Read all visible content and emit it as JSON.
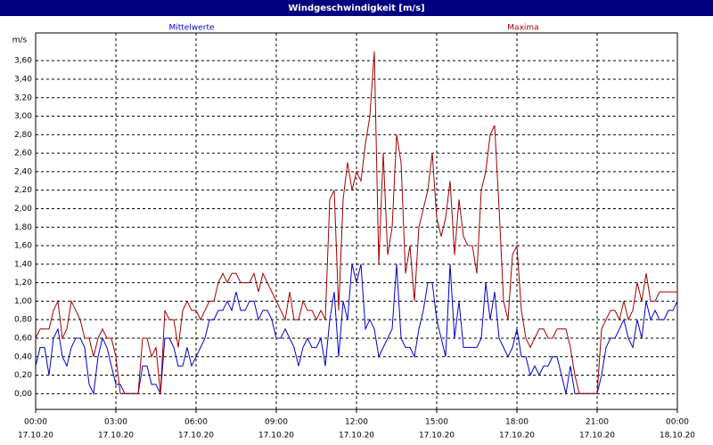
{
  "chart_data": {
    "type": "line",
    "title": "Windgeschwindigkeit [m/s]",
    "y_unit": "m/s",
    "x": [
      0,
      10,
      20,
      30,
      40,
      50,
      60,
      70,
      80,
      90,
      100,
      110,
      120,
      130,
      140,
      150,
      160,
      170,
      180,
      190,
      200,
      210,
      220,
      230,
      240,
      250,
      260,
      270,
      280,
      290,
      300,
      310,
      320,
      330,
      340,
      350,
      360,
      370,
      380,
      390,
      400,
      410,
      420,
      430,
      440,
      450,
      460,
      470,
      480,
      490,
      500,
      510,
      520,
      530,
      540,
      550,
      560,
      570,
      580,
      590,
      600,
      610,
      620,
      630,
      640,
      650,
      660,
      670,
      680,
      690,
      700,
      710,
      720,
      730,
      740,
      750,
      760,
      770,
      780,
      790,
      800,
      810,
      820,
      830,
      840,
      850,
      860,
      870,
      880,
      890,
      900,
      910,
      920,
      930,
      940,
      950,
      960,
      970,
      980,
      990,
      1000,
      1010,
      1020,
      1030,
      1040,
      1050,
      1060,
      1070,
      1080,
      1090,
      1100,
      1110,
      1120,
      1130,
      1140,
      1150,
      1160,
      1170,
      1180,
      1190,
      1200,
      1210,
      1220,
      1230,
      1240,
      1250,
      1260,
      1270,
      1280,
      1290,
      1300,
      1310,
      1320,
      1330,
      1340,
      1350,
      1360,
      1370,
      1380,
      1390,
      1400,
      1410,
      1420,
      1430,
      1440
    ],
    "series": [
      {
        "name": "Mittelwerte",
        "color": "#0000cc",
        "values": [
          0.3,
          0.5,
          0.5,
          0.2,
          0.6,
          0.7,
          0.4,
          0.3,
          0.5,
          0.6,
          0.6,
          0.5,
          0.1,
          0,
          0.4,
          0.6,
          0.5,
          0.3,
          0.1,
          0.1,
          0,
          0,
          0,
          0,
          0.3,
          0.3,
          0.1,
          0.1,
          0,
          0.6,
          0.6,
          0.5,
          0.3,
          0.3,
          0.5,
          0.3,
          0.4,
          0.5,
          0.6,
          0.8,
          0.8,
          0.9,
          0.9,
          1.0,
          0.9,
          1.1,
          0.9,
          0.9,
          1.0,
          1.0,
          0.8,
          0.9,
          0.9,
          0.8,
          0.6,
          0.6,
          0.7,
          0.6,
          0.5,
          0.3,
          0.5,
          0.6,
          0.5,
          0.5,
          0.6,
          0.3,
          0.8,
          1.1,
          0.4,
          1.0,
          0.8,
          1.4,
          1.2,
          1.4,
          0.7,
          0.8,
          0.7,
          0.4,
          0.5,
          0.6,
          0.7,
          1.4,
          0.6,
          0.5,
          0.5,
          0.4,
          0.7,
          0.9,
          1.2,
          1.2,
          0.8,
          0.6,
          0.4,
          1.4,
          0.6,
          1.0,
          0.5,
          0.5,
          0.5,
          0.5,
          0.6,
          1.2,
          0.8,
          1.1,
          0.6,
          0.5,
          0.4,
          0.5,
          0.7,
          0.4,
          0.4,
          0.2,
          0.3,
          0.2,
          0.3,
          0.3,
          0.4,
          0.4,
          0.2,
          0,
          0.3,
          0,
          0,
          0,
          0,
          0,
          0,
          0.2,
          0.5,
          0.6,
          0.6,
          0.7,
          0.8,
          0.6,
          0.5,
          0.8,
          0.6,
          1.0,
          0.8,
          0.9,
          0.8,
          0.8,
          0.9,
          0.9,
          1.0
        ]
      },
      {
        "name": "Maxima",
        "color": "#a00000",
        "values": [
          0.6,
          0.7,
          0.7,
          0.7,
          0.9,
          1.0,
          0.6,
          0.7,
          1.0,
          0.9,
          0.8,
          0.6,
          0.6,
          0.4,
          0.6,
          0.7,
          0.6,
          0.6,
          0.4,
          0,
          0,
          0,
          0,
          0,
          0.6,
          0.6,
          0.4,
          0.5,
          0,
          0.9,
          0.8,
          0.8,
          0.5,
          0.9,
          1.0,
          0.9,
          0.9,
          0.8,
          0.9,
          1.0,
          1.0,
          1.2,
          1.3,
          1.2,
          1.3,
          1.3,
          1.2,
          1.2,
          1.2,
          1.3,
          1.1,
          1.3,
          1.2,
          1.1,
          1.0,
          0.9,
          0.8,
          1.1,
          0.8,
          0.8,
          1.0,
          0.9,
          0.9,
          0.8,
          0.9,
          0.8,
          2.1,
          2.2,
          0.9,
          2.1,
          2.5,
          2.2,
          2.4,
          2.3,
          2.7,
          3.0,
          3.7,
          1.4,
          2.6,
          1.5,
          1.8,
          2.8,
          2.5,
          1.3,
          1.6,
          1.0,
          1.8,
          2.0,
          2.2,
          2.6,
          1.9,
          1.7,
          1.9,
          2.3,
          1.5,
          2.1,
          1.7,
          1.6,
          1.6,
          1.3,
          2.2,
          2.4,
          2.8,
          2.9,
          2.0,
          1.0,
          0.8,
          1.5,
          1.6,
          0.9,
          0.6,
          0.5,
          0.6,
          0.7,
          0.7,
          0.6,
          0.6,
          0.7,
          0.7,
          0.7,
          0.5,
          0.2,
          0,
          0,
          0,
          0,
          0,
          0.7,
          0.8,
          0.9,
          0.9,
          0.8,
          1.0,
          0.8,
          0.9,
          1.2,
          1.0,
          1.3,
          1.0,
          1.0,
          1.1,
          1.1,
          1.1,
          1.1,
          1.1
        ]
      }
    ],
    "xlim": [
      0,
      1440
    ],
    "xticks": [
      {
        "value": 0,
        "label": "00:00"
      },
      {
        "value": 180,
        "label": "03:00"
      },
      {
        "value": 360,
        "label": "06:00"
      },
      {
        "value": 540,
        "label": "09:00"
      },
      {
        "value": 720,
        "label": "12:00"
      },
      {
        "value": 900,
        "label": "15:00"
      },
      {
        "value": 1080,
        "label": "18:00"
      },
      {
        "value": 1260,
        "label": "21:00"
      },
      {
        "value": 1440,
        "label": "00:00"
      }
    ],
    "xtick_dates": [
      "17.10.20",
      "17.10.20",
      "17.10.20",
      "17.10.20",
      "17.10.20",
      "17.10.20",
      "17.10.20",
      "17.10.20",
      "18.10.20"
    ],
    "ylim": [
      -0.17,
      3.9
    ],
    "yticks": [
      {
        "value": 0,
        "label": "0,00"
      },
      {
        "value": 0.2,
        "label": "0,20"
      },
      {
        "value": 0.4,
        "label": "0,40"
      },
      {
        "value": 0.6,
        "label": "0,60"
      },
      {
        "value": 0.8,
        "label": "0,80"
      },
      {
        "value": 1.0,
        "label": "1,00"
      },
      {
        "value": 1.2,
        "label": "1,20"
      },
      {
        "value": 1.4,
        "label": "1,40"
      },
      {
        "value": 1.6,
        "label": "1,60"
      },
      {
        "value": 1.8,
        "label": "1,80"
      },
      {
        "value": 2.0,
        "label": "2,00"
      },
      {
        "value": 2.2,
        "label": "2,20"
      },
      {
        "value": 2.4,
        "label": "2,40"
      },
      {
        "value": 2.6,
        "label": "2,60"
      },
      {
        "value": 2.8,
        "label": "2,80"
      },
      {
        "value": 3.0,
        "label": "3,00"
      },
      {
        "value": 3.2,
        "label": "3,20"
      },
      {
        "value": 3.4,
        "label": "3,40"
      },
      {
        "value": 3.6,
        "label": "3,60"
      }
    ],
    "grid": true
  }
}
